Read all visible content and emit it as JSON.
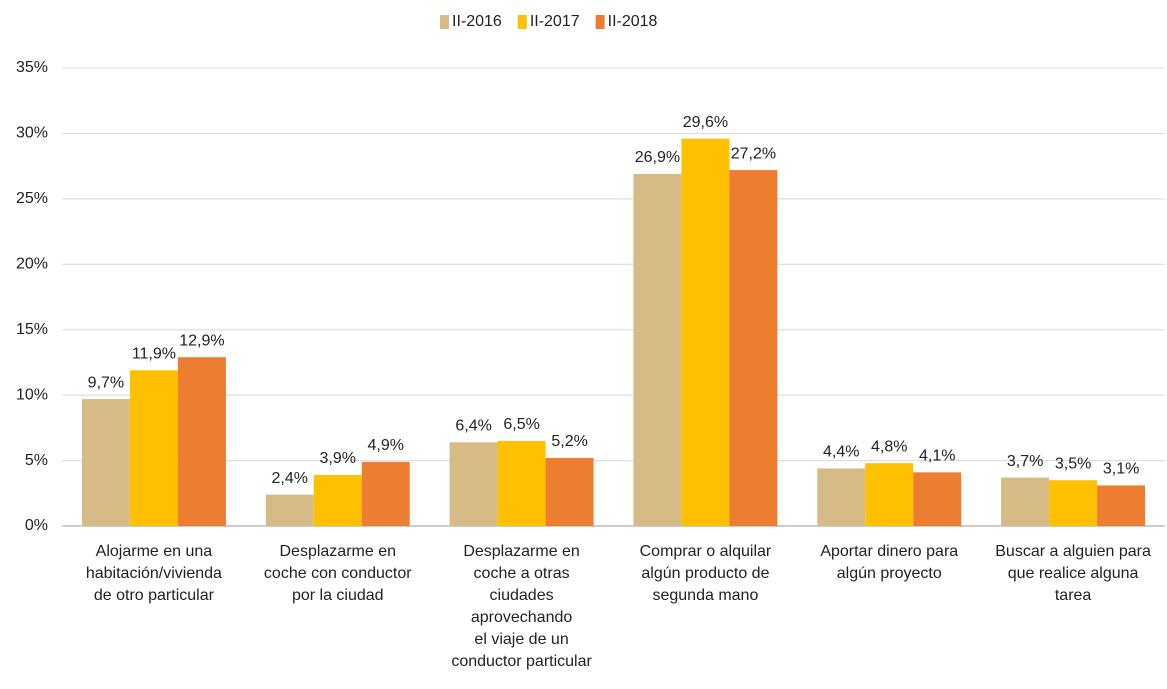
{
  "chart_data": {
    "type": "bar",
    "categories": [
      [
        "Alojarme en una",
        "habitación/vivienda",
        "de otro particular"
      ],
      [
        "Desplazarme en",
        "coche con conductor",
        "por la ciudad"
      ],
      [
        "Desplazarme en",
        "coche a otras",
        "ciudades",
        "aprovechando",
        "el viaje de un",
        "conductor particular"
      ],
      [
        "Comprar o alquilar",
        "algún producto de",
        "segunda mano"
      ],
      [
        "Aportar dinero para",
        "algún proyecto"
      ],
      [
        "Buscar a alguien para",
        "que realice alguna",
        "tarea"
      ]
    ],
    "series": [
      {
        "name": "II-2016",
        "color": "#d6bb87",
        "values": [
          9.7,
          2.4,
          6.4,
          26.9,
          4.4,
          3.7
        ],
        "value_labels": [
          "9,7%",
          "2,4%",
          "6,4%",
          "26,9%",
          "4,4%",
          "3,7%"
        ]
      },
      {
        "name": "II-2017",
        "color": "#ffc000",
        "values": [
          11.9,
          3.9,
          6.5,
          29.6,
          4.8,
          3.5
        ],
        "value_labels": [
          "11,9%",
          "3,9%",
          "6,5%",
          "29,6%",
          "4,8%",
          "3,5%"
        ]
      },
      {
        "name": "II-2018",
        "color": "#ed7d31",
        "values": [
          12.9,
          4.9,
          5.2,
          27.2,
          4.1,
          3.1
        ],
        "value_labels": [
          "12,9%",
          "4,9%",
          "5,2%",
          "27,2%",
          "4,1%",
          "3,1%"
        ]
      }
    ],
    "ylim": [
      0,
      35
    ],
    "yticks": [
      {
        "value": 0,
        "label": "0%"
      },
      {
        "value": 5,
        "label": "5%"
      },
      {
        "value": 10,
        "label": "10%"
      },
      {
        "value": 15,
        "label": "15%"
      },
      {
        "value": 20,
        "label": "20%"
      },
      {
        "value": 25,
        "label": "25%"
      },
      {
        "value": 30,
        "label": "30%"
      },
      {
        "value": 35,
        "label": "35%"
      }
    ],
    "grid": true,
    "legend": "top"
  }
}
